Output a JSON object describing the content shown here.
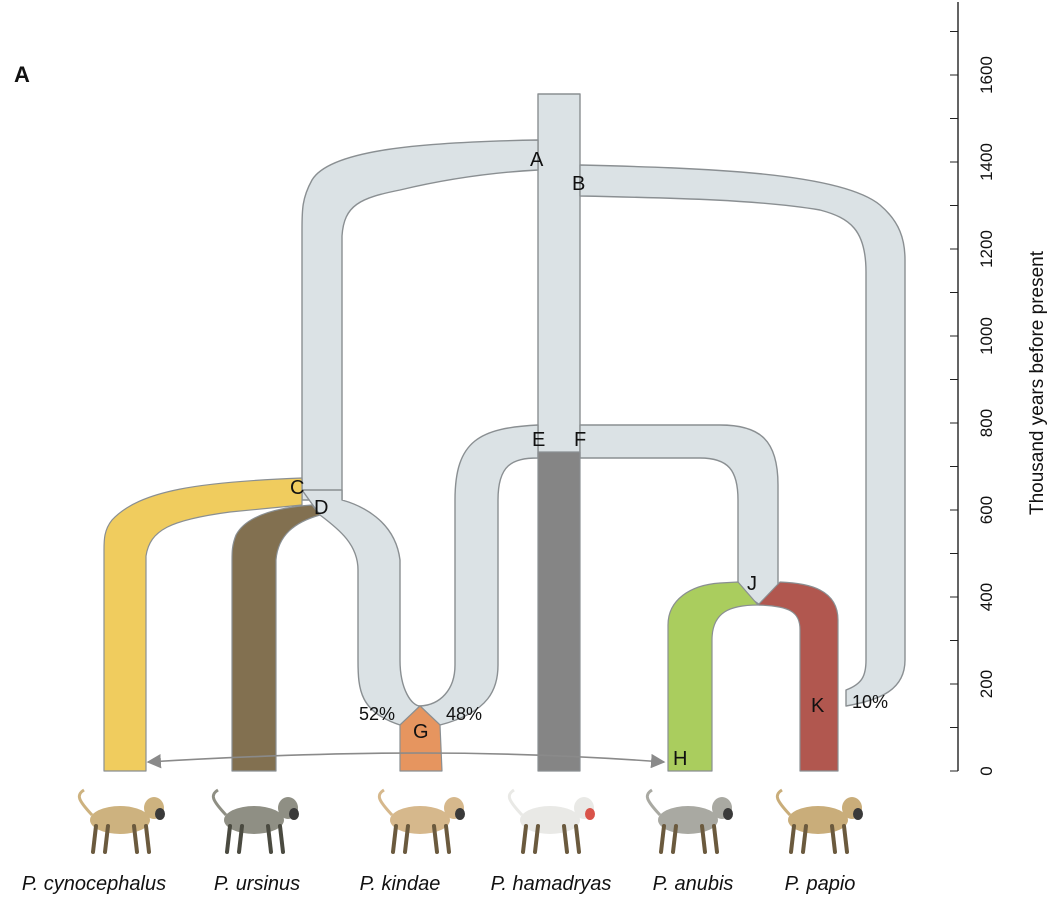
{
  "panel_label": "A",
  "axis": {
    "label": "Thousand years before present",
    "ticks": [
      "0",
      "200",
      "400",
      "600",
      "800",
      "1000",
      "1200",
      "1400",
      "1600"
    ]
  },
  "nodes": {
    "A": "A",
    "B": "B",
    "C": "C",
    "D": "D",
    "E": "E",
    "F": "F",
    "G": "G",
    "H": "H",
    "J": "J",
    "K": "K"
  },
  "percentages": {
    "g_left": "52%",
    "g_right": "48%",
    "k_introgression": "10%"
  },
  "species": [
    {
      "label": "P. cynocephalus",
      "color": "#f0cc5e"
    },
    {
      "label": "P. ursinus",
      "color": "#827050"
    },
    {
      "label": "P. kindae",
      "color": "#e6955f"
    },
    {
      "label": "P. hamadryas",
      "color": "#858585"
    },
    {
      "label": "P. anubis",
      "color": "#aacd5e"
    },
    {
      "label": "P. papio",
      "color": "#b1574f"
    }
  ],
  "colors": {
    "ancestral": "#dbe2e5",
    "outline": "#8a8f92",
    "gene_flow_arrow": "#8a8a8a"
  },
  "icons": [
    "baboon-cynocephalus-icon",
    "baboon-ursinus-icon",
    "baboon-kindae-icon",
    "baboon-hamadryas-icon",
    "baboon-anubis-icon",
    "baboon-papio-icon"
  ]
}
